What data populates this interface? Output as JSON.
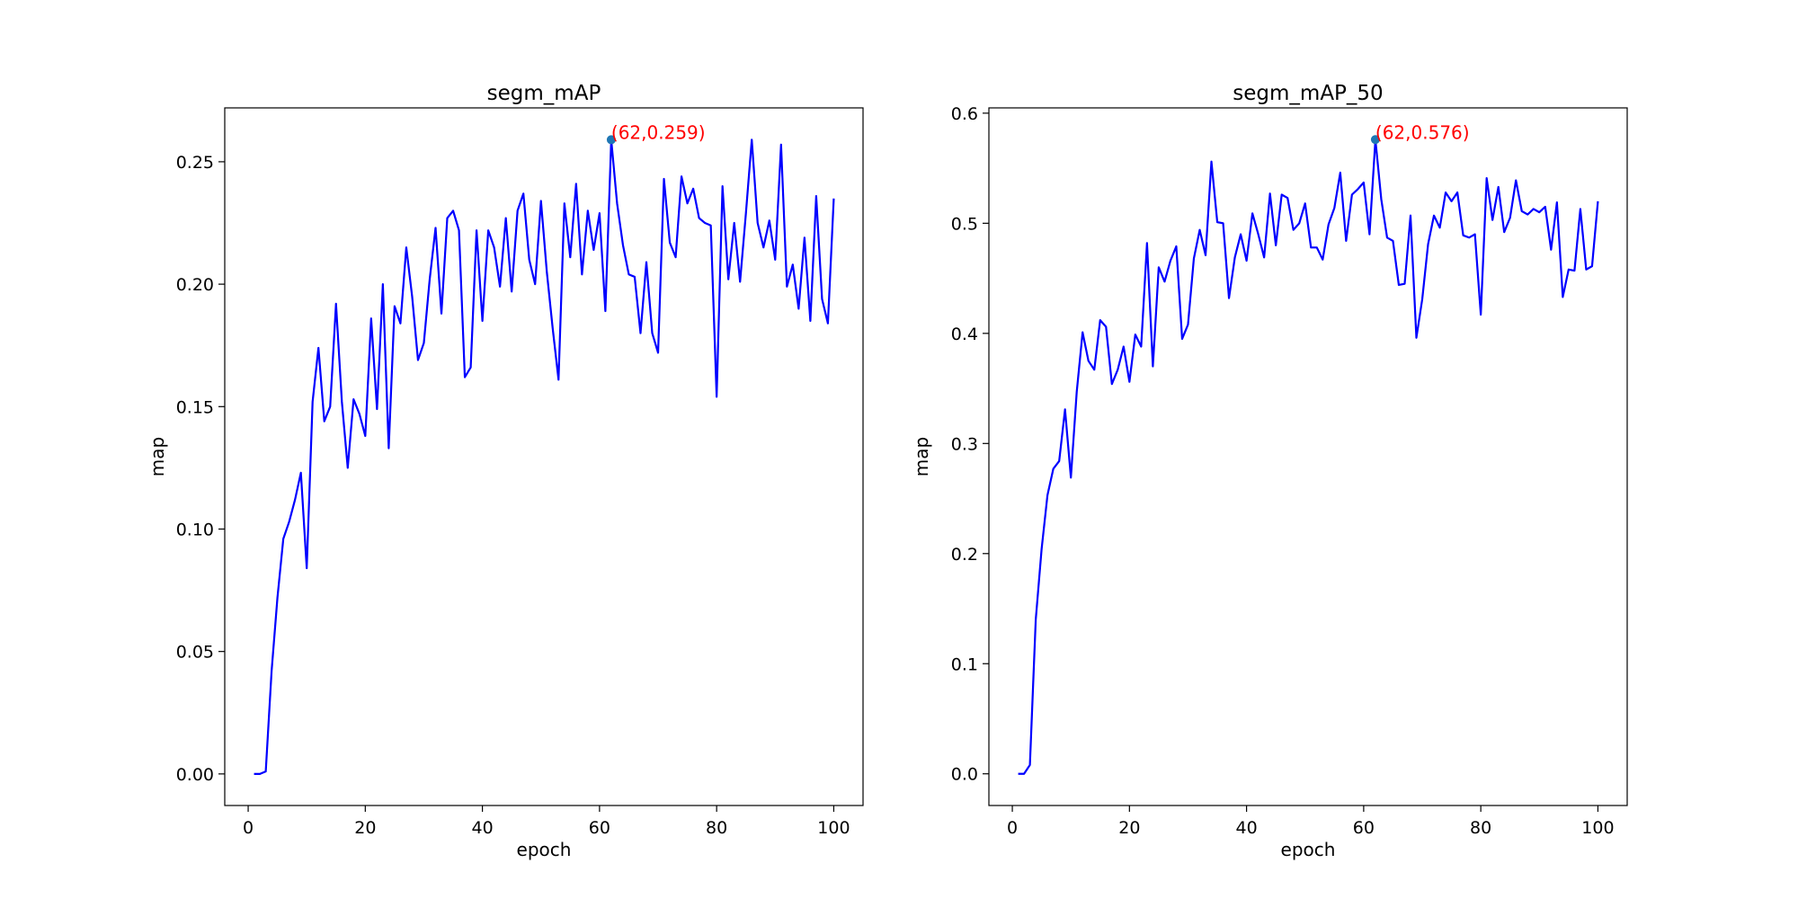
{
  "colors": {
    "line": "#0000ff",
    "marker": "#1f77b4",
    "annotation": "#ff0000",
    "axis": "#000000"
  },
  "chart_data": [
    {
      "type": "line",
      "title": "segm_mAP",
      "xlabel": "epoch",
      "ylabel": "map",
      "xlim": [
        -4,
        105
      ],
      "ylim": [
        -0.0129,
        0.272
      ],
      "xticks": [
        0,
        20,
        40,
        60,
        80,
        100
      ],
      "xtick_labels": [
        "0",
        "20",
        "40",
        "60",
        "80",
        "100"
      ],
      "yticks": [
        0.0,
        0.05,
        0.1,
        0.15,
        0.2,
        0.25
      ],
      "ytick_labels": [
        "0.00",
        "0.05",
        "0.10",
        "0.15",
        "0.20",
        "0.25"
      ],
      "grid": false,
      "series": [
        {
          "x": [
            1,
            2,
            3,
            4,
            5,
            6,
            7,
            8,
            9,
            10,
            11,
            12,
            13,
            14,
            15,
            16,
            17,
            18,
            19,
            20,
            21,
            22,
            23,
            24,
            25,
            26,
            27,
            28,
            29,
            30,
            31,
            32,
            33,
            34,
            35,
            36,
            37,
            38,
            39,
            40,
            41,
            42,
            43,
            44,
            45,
            46,
            47,
            48,
            49,
            50,
            51,
            52,
            53,
            54,
            55,
            56,
            57,
            58,
            59,
            60,
            61,
            62,
            63,
            64,
            65,
            66,
            67,
            68,
            69,
            70,
            71,
            72,
            73,
            74,
            75,
            76,
            77,
            78,
            79,
            80,
            81,
            82,
            83,
            84,
            85,
            86,
            87,
            88,
            89,
            90,
            91,
            92,
            93,
            94,
            95,
            96,
            97,
            98,
            99,
            100
          ],
          "y": [
            0.0,
            0.0,
            0.001,
            0.042,
            0.072,
            0.096,
            0.103,
            0.112,
            0.123,
            0.084,
            0.152,
            0.174,
            0.144,
            0.15,
            0.192,
            0.152,
            0.125,
            0.153,
            0.147,
            0.138,
            0.186,
            0.149,
            0.2,
            0.133,
            0.191,
            0.184,
            0.215,
            0.195,
            0.169,
            0.176,
            0.202,
            0.223,
            0.188,
            0.227,
            0.23,
            0.222,
            0.162,
            0.166,
            0.222,
            0.185,
            0.222,
            0.215,
            0.199,
            0.227,
            0.197,
            0.23,
            0.237,
            0.21,
            0.2,
            0.234,
            0.205,
            0.182,
            0.161,
            0.233,
            0.211,
            0.241,
            0.204,
            0.23,
            0.214,
            0.229,
            0.189,
            0.259,
            0.233,
            0.216,
            0.204,
            0.203,
            0.18,
            0.209,
            0.18,
            0.172,
            0.243,
            0.217,
            0.211,
            0.244,
            0.233,
            0.239,
            0.227,
            0.225,
            0.224,
            0.154,
            0.24,
            0.202,
            0.225,
            0.201,
            0.229,
            0.259,
            0.225,
            0.215,
            0.226,
            0.21,
            0.257,
            0.199,
            0.208,
            0.19,
            0.219,
            0.185,
            0.236,
            0.194,
            0.184,
            0.235
          ]
        }
      ],
      "peak": {
        "x": 62,
        "y": 0.259,
        "label": "(62,0.259)"
      }
    },
    {
      "type": "line",
      "title": "segm_mAP_50",
      "xlabel": "epoch",
      "ylabel": "map",
      "xlim": [
        -4,
        105
      ],
      "ylim": [
        -0.0288,
        0.6048
      ],
      "xticks": [
        0,
        20,
        40,
        60,
        80,
        100
      ],
      "xtick_labels": [
        "0",
        "20",
        "40",
        "60",
        "80",
        "100"
      ],
      "yticks": [
        0.0,
        0.1,
        0.2,
        0.3,
        0.4,
        0.5,
        0.6
      ],
      "ytick_labels": [
        "0.0",
        "0.1",
        "0.2",
        "0.3",
        "0.4",
        "0.5",
        "0.6"
      ],
      "grid": false,
      "series": [
        {
          "x": [
            1,
            2,
            3,
            4,
            5,
            6,
            7,
            8,
            9,
            10,
            11,
            12,
            13,
            14,
            15,
            16,
            17,
            18,
            19,
            20,
            21,
            22,
            23,
            24,
            25,
            26,
            27,
            28,
            29,
            30,
            31,
            32,
            33,
            34,
            35,
            36,
            37,
            38,
            39,
            40,
            41,
            42,
            43,
            44,
            45,
            46,
            47,
            48,
            49,
            50,
            51,
            52,
            53,
            54,
            55,
            56,
            57,
            58,
            59,
            60,
            61,
            62,
            63,
            64,
            65,
            66,
            67,
            68,
            69,
            70,
            71,
            72,
            73,
            74,
            75,
            76,
            77,
            78,
            79,
            80,
            81,
            82,
            83,
            84,
            85,
            86,
            87,
            88,
            89,
            90,
            91,
            92,
            93,
            94,
            95,
            96,
            97,
            98,
            99,
            100
          ],
          "y": [
            0.0,
            0.0,
            0.008,
            0.14,
            0.204,
            0.253,
            0.277,
            0.284,
            0.331,
            0.269,
            0.347,
            0.401,
            0.375,
            0.367,
            0.412,
            0.406,
            0.354,
            0.367,
            0.388,
            0.356,
            0.399,
            0.388,
            0.482,
            0.37,
            0.46,
            0.447,
            0.466,
            0.479,
            0.395,
            0.408,
            0.468,
            0.494,
            0.471,
            0.556,
            0.501,
            0.5,
            0.432,
            0.469,
            0.49,
            0.466,
            0.509,
            0.49,
            0.469,
            0.527,
            0.48,
            0.526,
            0.523,
            0.494,
            0.5,
            0.518,
            0.478,
            0.478,
            0.467,
            0.499,
            0.514,
            0.546,
            0.484,
            0.526,
            0.531,
            0.537,
            0.49,
            0.576,
            0.522,
            0.487,
            0.484,
            0.444,
            0.445,
            0.507,
            0.396,
            0.431,
            0.481,
            0.507,
            0.496,
            0.528,
            0.52,
            0.528,
            0.489,
            0.487,
            0.49,
            0.417,
            0.541,
            0.503,
            0.533,
            0.492,
            0.505,
            0.539,
            0.511,
            0.508,
            0.513,
            0.51,
            0.515,
            0.476,
            0.519,
            0.433,
            0.458,
            0.457,
            0.513,
            0.458,
            0.461,
            0.52
          ]
        }
      ],
      "peak": {
        "x": 62,
        "y": 0.576,
        "label": "(62,0.576)"
      }
    }
  ]
}
